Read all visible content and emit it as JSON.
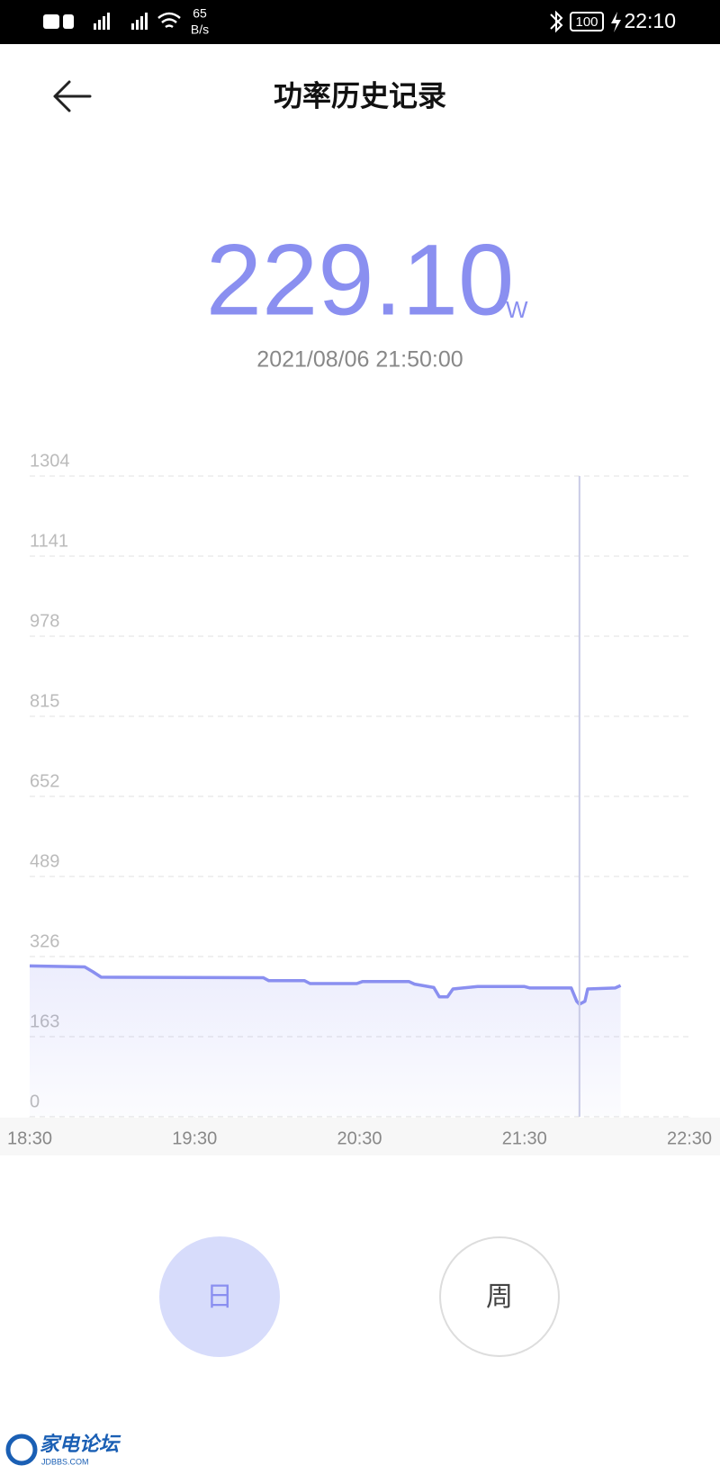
{
  "status_bar": {
    "net_speed": "65",
    "net_unit": "B/s",
    "battery": "100",
    "time": "22:10"
  },
  "header": {
    "title": "功率历史记录"
  },
  "reading": {
    "value": "229.10",
    "unit": "W",
    "timestamp": "2021/08/06 21:50:00"
  },
  "chart_data": {
    "type": "line",
    "color": "#8a8ff0",
    "grid": true,
    "x": [
      1110,
      1130,
      1133,
      1136,
      1195,
      1197,
      1210,
      1212,
      1229,
      1231,
      1248,
      1250,
      1257,
      1259,
      1262,
      1264,
      1273,
      1290,
      1292,
      1307,
      1309,
      1310,
      1312,
      1313,
      1323,
      1325
    ],
    "values": [
      307,
      305,
      295,
      284,
      283,
      277,
      277,
      271,
      271,
      275,
      275,
      270,
      263,
      244,
      244,
      260,
      265,
      265,
      262,
      262,
      235,
      229.1,
      235,
      260,
      262,
      267
    ],
    "xlim": [
      1110,
      1350
    ],
    "xticks": [
      {
        "value": 1110,
        "label": "18:30"
      },
      {
        "value": 1170,
        "label": "19:30"
      },
      {
        "value": 1230,
        "label": "20:30"
      },
      {
        "value": 1290,
        "label": "21:30"
      },
      {
        "value": 1350,
        "label": "22:30"
      }
    ],
    "ylim": [
      0,
      1304
    ],
    "yticks": [
      0,
      163,
      326,
      489,
      652,
      815,
      978,
      1141,
      1304
    ]
  },
  "tabs": [
    "日",
    "周"
  ],
  "watermark": {
    "name": "家电论坛",
    "site": "JDBBS.COM"
  }
}
